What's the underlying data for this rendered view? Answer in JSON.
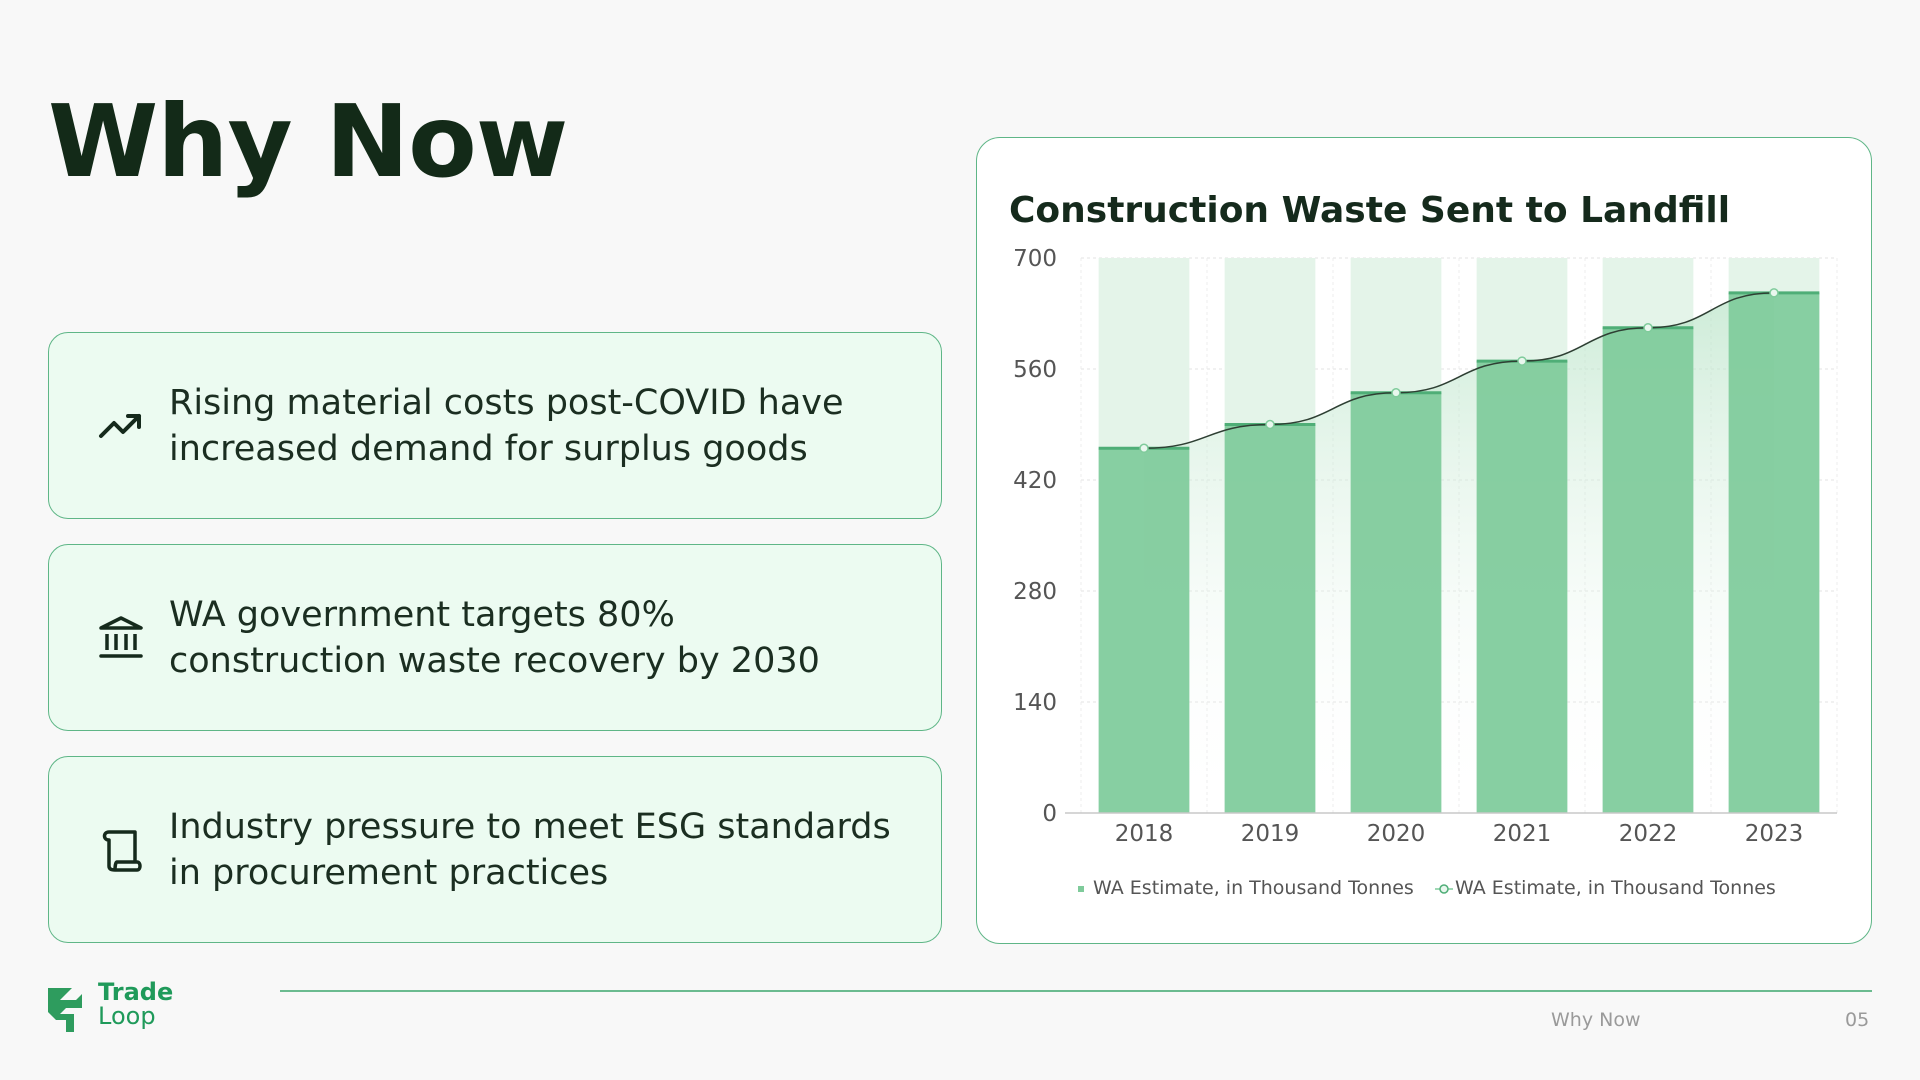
{
  "slide": {
    "title": "Why Now",
    "section": "Why Now",
    "page": "05"
  },
  "logo": {
    "line1": "Trade",
    "line2": "Loop",
    "icon": "tradeloop-logo-icon"
  },
  "points": [
    {
      "icon": "trending-up-icon",
      "text": "Rising material costs post-COVID have increased demand for surplus goods"
    },
    {
      "icon": "government-building-icon",
      "text": "WA government targets 80% construction waste recovery by 2030"
    },
    {
      "icon": "scroll-icon",
      "text": "Industry pressure to meet ESG standards in procurement practices"
    }
  ],
  "colors": {
    "accent": "#2e9c5e",
    "card_bg": "#ecfbf1",
    "card_border": "#5fb687",
    "bar": "#7fcb9b",
    "text_dark": "#132a18"
  },
  "chart_data": {
    "type": "bar",
    "title": "Construction Waste Sent to Landfill",
    "categories": [
      "2018",
      "2019",
      "2020",
      "2021",
      "2022",
      "2023"
    ],
    "series": [
      {
        "name": "WA Estimate, in Thousand Tonnes",
        "kind": "bar",
        "values": [
          460,
          490,
          530,
          570,
          612,
          656
        ]
      },
      {
        "name": "WA Estimate, in Thousand Tonnes",
        "kind": "line",
        "values": [
          460,
          490,
          530,
          570,
          612,
          656
        ]
      }
    ],
    "ylim": [
      0,
      700
    ],
    "yticks": [
      0,
      140,
      280,
      420,
      560,
      700
    ],
    "xlabel": "",
    "ylabel": "",
    "grid": true,
    "legend": "bottom"
  }
}
